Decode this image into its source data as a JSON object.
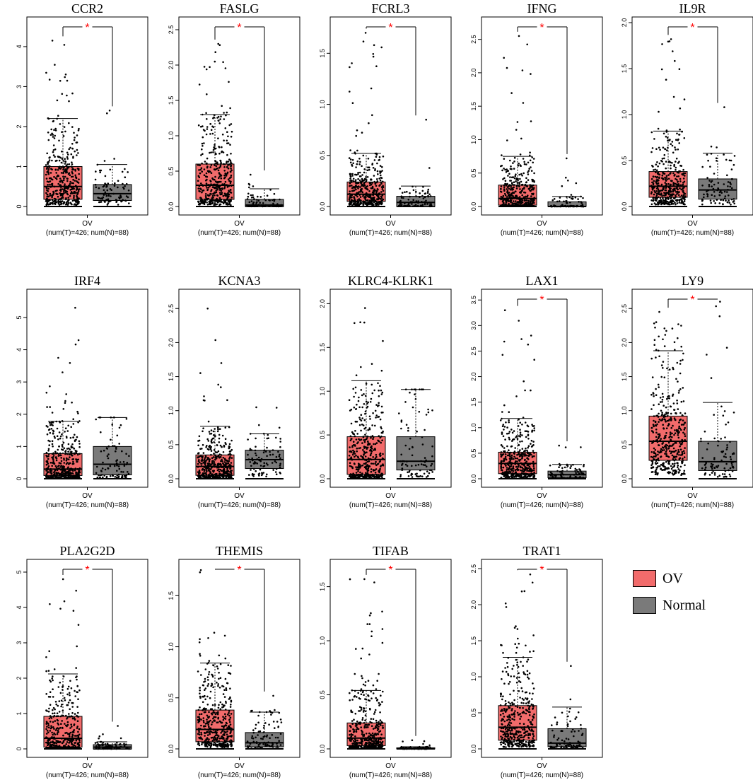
{
  "legend": {
    "items": [
      {
        "label": "OV",
        "color": "#f26b6b"
      },
      {
        "label": "Normal",
        "color": "#7a7a7a"
      }
    ]
  },
  "colors": {
    "tumor": "#f26b6b",
    "normal": "#7a7a7a",
    "significance": "#ff0000",
    "points": "#000000"
  },
  "chart_data": [
    {
      "type": "box",
      "title": "CCR2",
      "category": "OV",
      "caption": "(num(T)=426; num(N)=88)",
      "significant": true,
      "sig_label": "*",
      "ylim": [
        0,
        4.6
      ],
      "yticks": [
        0,
        1,
        2,
        3,
        4
      ],
      "ytick_labels": [
        "0",
        "1",
        "2",
        "3",
        "4"
      ],
      "series": [
        {
          "name": "OV",
          "n": 426,
          "q1": 0.18,
          "median": 0.5,
          "q3": 1.0,
          "whisker_high": 2.2,
          "max": 4.15
        },
        {
          "name": "Normal",
          "n": 88,
          "q1": 0.15,
          "median": 0.32,
          "q3": 0.55,
          "whisker_high": 1.05,
          "max": 2.4
        }
      ]
    },
    {
      "type": "box",
      "title": "FASLG",
      "category": "OV",
      "caption": "(num(T)=426; num(N)=88)",
      "significant": true,
      "sig_label": "*",
      "ylim": [
        0,
        2.6
      ],
      "yticks": [
        0,
        0.5,
        1,
        1.5,
        2,
        2.5
      ],
      "ytick_labels": [
        "0.0",
        "0.5",
        "1.0",
        "1.5",
        "2.0",
        "2.5"
      ],
      "series": [
        {
          "name": "OV",
          "n": 426,
          "q1": 0.1,
          "median": 0.3,
          "q3": 0.6,
          "whisker_high": 1.3,
          "max": 2.3
        },
        {
          "name": "Normal",
          "n": 88,
          "q1": 0.0,
          "median": 0.02,
          "q3": 0.1,
          "whisker_high": 0.25,
          "max": 0.45
        }
      ]
    },
    {
      "type": "box",
      "title": "FCRL3",
      "category": "OV",
      "caption": "(num(T)=426; num(N)=88)",
      "significant": true,
      "sig_label": "*",
      "ylim": [
        0,
        1.8
      ],
      "yticks": [
        0,
        0.5,
        1,
        1.5
      ],
      "ytick_labels": [
        "0.0",
        "0.5",
        "1.0",
        "1.5"
      ],
      "series": [
        {
          "name": "OV",
          "n": 426,
          "q1": 0.05,
          "median": 0.12,
          "q3": 0.24,
          "whisker_high": 0.52,
          "max": 1.7
        },
        {
          "name": "Normal",
          "n": 88,
          "q1": 0.0,
          "median": 0.04,
          "q3": 0.1,
          "whisker_high": 0.2,
          "max": 0.85
        }
      ]
    },
    {
      "type": "box",
      "title": "IFNG",
      "category": "OV",
      "caption": "(num(T)=426; num(N)=88)",
      "significant": true,
      "sig_label": "*",
      "ylim": [
        0,
        2.75
      ],
      "yticks": [
        0,
        0.5,
        1,
        1.5,
        2,
        2.5
      ],
      "ytick_labels": [
        "0.0",
        "0.5",
        "1.0",
        "1.5",
        "2.0",
        "2.5"
      ],
      "series": [
        {
          "name": "OV",
          "n": 426,
          "q1": 0.02,
          "median": 0.12,
          "q3": 0.32,
          "whisker_high": 0.75,
          "max": 2.55
        },
        {
          "name": "Normal",
          "n": 88,
          "q1": 0.0,
          "median": 0.0,
          "q3": 0.07,
          "whisker_high": 0.15,
          "max": 0.72
        }
      ]
    },
    {
      "type": "box",
      "title": "IL9R",
      "category": "OV",
      "caption": "(num(T)=426; num(N)=88)",
      "significant": true,
      "sig_label": "*",
      "ylim": [
        0,
        2.0
      ],
      "yticks": [
        0,
        0.5,
        1,
        1.5,
        2
      ],
      "ytick_labels": [
        "0.0",
        "0.5",
        "1.0",
        "1.5",
        "2.0"
      ],
      "series": [
        {
          "name": "OV",
          "n": 426,
          "q1": 0.1,
          "median": 0.22,
          "q3": 0.38,
          "whisker_high": 0.82,
          "max": 1.82
        },
        {
          "name": "Normal",
          "n": 88,
          "q1": 0.08,
          "median": 0.18,
          "q3": 0.3,
          "whisker_high": 0.58,
          "max": 1.08
        }
      ]
    },
    {
      "type": "box",
      "title": "IRF4",
      "category": "OV",
      "caption": "(num(T)=426; num(N)=88)",
      "significant": false,
      "sig_label": "",
      "ylim": [
        0,
        5.7
      ],
      "yticks": [
        0,
        1,
        2,
        3,
        4,
        5
      ],
      "ytick_labels": [
        "0",
        "1",
        "2",
        "3",
        "4",
        "5"
      ],
      "series": [
        {
          "name": "OV",
          "n": 426,
          "q1": 0.1,
          "median": 0.3,
          "q3": 0.78,
          "whisker_high": 1.78,
          "max": 5.3
        },
        {
          "name": "Normal",
          "n": 88,
          "q1": 0.12,
          "median": 0.45,
          "q3": 1.0,
          "whisker_high": 1.9,
          "max": 1.9
        }
      ]
    },
    {
      "type": "box",
      "title": "KCNA3",
      "category": "OV",
      "caption": "(num(T)=426; num(N)=88)",
      "significant": false,
      "sig_label": "",
      "ylim": [
        0,
        2.7
      ],
      "yticks": [
        0,
        0.5,
        1,
        1.5,
        2,
        2.5
      ],
      "ytick_labels": [
        "0.0",
        "0.5",
        "1.0",
        "1.5",
        "2.0",
        "2.5"
      ],
      "series": [
        {
          "name": "OV",
          "n": 426,
          "q1": 0.05,
          "median": 0.18,
          "q3": 0.35,
          "whisker_high": 0.77,
          "max": 2.5
        },
        {
          "name": "Normal",
          "n": 88,
          "q1": 0.15,
          "median": 0.28,
          "q3": 0.42,
          "whisker_high": 0.66,
          "max": 1.05
        }
      ]
    },
    {
      "type": "box",
      "title": "KLRC4-KLRK1",
      "category": "OV",
      "caption": "(num(T)=426; num(N)=88)",
      "significant": false,
      "sig_label": "",
      "ylim": [
        0,
        2.1
      ],
      "yticks": [
        0,
        0.5,
        1,
        1.5,
        2
      ],
      "ytick_labels": [
        "0.0",
        "0.5",
        "1.0",
        "1.5",
        "2.0"
      ],
      "series": [
        {
          "name": "OV",
          "n": 426,
          "q1": 0.05,
          "median": 0.22,
          "q3": 0.48,
          "whisker_high": 1.12,
          "max": 1.95
        },
        {
          "name": "Normal",
          "n": 88,
          "q1": 0.1,
          "median": 0.2,
          "q3": 0.48,
          "whisker_high": 1.02,
          "max": 1.02
        }
      ]
    },
    {
      "type": "box",
      "title": "LAX1",
      "category": "OV",
      "caption": "(num(T)=426; num(N)=88)",
      "significant": true,
      "sig_label": "*",
      "ylim": [
        0,
        3.6
      ],
      "yticks": [
        0,
        0.5,
        1,
        1.5,
        2,
        2.5,
        3,
        3.5
      ],
      "ytick_labels": [
        "0.0",
        "0.5",
        "1.0",
        "1.5",
        "2.0",
        "2.5",
        "3.0",
        "3.5"
      ],
      "series": [
        {
          "name": "OV",
          "n": 426,
          "q1": 0.1,
          "median": 0.3,
          "q3": 0.52,
          "whisker_high": 1.18,
          "max": 3.3
        },
        {
          "name": "Normal",
          "n": 88,
          "q1": 0.02,
          "median": 0.08,
          "q3": 0.15,
          "whisker_high": 0.28,
          "max": 0.65
        }
      ]
    },
    {
      "type": "box",
      "title": "LY9",
      "category": "OV",
      "caption": "(num(T)=426; num(N)=88)",
      "significant": true,
      "sig_label": "*",
      "ylim": [
        0,
        2.7
      ],
      "yticks": [
        0,
        0.5,
        1,
        1.5,
        2,
        2.5
      ],
      "ytick_labels": [
        "0.0",
        "0.5",
        "1.0",
        "1.5",
        "2.0",
        "2.5"
      ],
      "series": [
        {
          "name": "OV",
          "n": 426,
          "q1": 0.27,
          "median": 0.55,
          "q3": 0.92,
          "whisker_high": 1.88,
          "max": 2.45
        },
        {
          "name": "Normal",
          "n": 88,
          "q1": 0.12,
          "median": 0.25,
          "q3": 0.55,
          "whisker_high": 1.12,
          "max": 2.6
        }
      ]
    },
    {
      "type": "box",
      "title": "PLA2G2D",
      "category": "OV",
      "caption": "(num(T)=426; num(N)=88)",
      "significant": true,
      "sig_label": "*",
      "ylim": [
        0,
        5.2
      ],
      "yticks": [
        0,
        1,
        2,
        3,
        4,
        5
      ],
      "ytick_labels": [
        "0",
        "1",
        "2",
        "3",
        "4",
        "5"
      ],
      "series": [
        {
          "name": "OV",
          "n": 426,
          "q1": 0.05,
          "median": 0.3,
          "q3": 0.92,
          "whisker_high": 2.12,
          "max": 4.8
        },
        {
          "name": "Normal",
          "n": 88,
          "q1": 0.0,
          "median": 0.05,
          "q3": 0.12,
          "whisker_high": 0.2,
          "max": 0.65
        }
      ]
    },
    {
      "type": "box",
      "title": "THEMIS",
      "category": "OV",
      "caption": "(num(T)=426; num(N)=88)",
      "significant": true,
      "sig_label": "*",
      "ylim": [
        0,
        1.8
      ],
      "yticks": [
        0,
        0.5,
        1,
        1.5
      ],
      "ytick_labels": [
        "0.0",
        "0.5",
        "1.0",
        "1.5"
      ],
      "series": [
        {
          "name": "OV",
          "n": 426,
          "q1": 0.07,
          "median": 0.19,
          "q3": 0.38,
          "whisker_high": 0.84,
          "max": 1.75
        },
        {
          "name": "Normal",
          "n": 88,
          "q1": 0.02,
          "median": 0.06,
          "q3": 0.16,
          "whisker_high": 0.36,
          "max": 0.52
        }
      ]
    },
    {
      "type": "box",
      "title": "TIFAB",
      "category": "OV",
      "caption": "(num(T)=426; num(N)=88)",
      "significant": true,
      "sig_label": "*",
      "ylim": [
        0,
        1.7
      ],
      "yticks": [
        0,
        0.5,
        1,
        1.5
      ],
      "ytick_labels": [
        "0.0",
        "0.5",
        "1.0",
        "1.5"
      ],
      "series": [
        {
          "name": "OV",
          "n": 426,
          "q1": 0.03,
          "median": 0.1,
          "q3": 0.24,
          "whisker_high": 0.54,
          "max": 1.57
        },
        {
          "name": "Normal",
          "n": 88,
          "q1": 0.0,
          "median": 0.0,
          "q3": 0.01,
          "whisker_high": 0.02,
          "max": 0.08
        }
      ]
    },
    {
      "type": "box",
      "title": "TRAT1",
      "category": "OV",
      "caption": "(num(T)=426; num(N)=88)",
      "significant": true,
      "sig_label": "*",
      "ylim": [
        0,
        2.55
      ],
      "yticks": [
        0,
        0.5,
        1,
        1.5,
        2,
        2.5
      ],
      "ytick_labels": [
        "0.0",
        "0.5",
        "1.0",
        "1.5",
        "2.0",
        "2.5"
      ],
      "series": [
        {
          "name": "OV",
          "n": 426,
          "q1": 0.12,
          "median": 0.3,
          "q3": 0.6,
          "whisker_high": 1.27,
          "max": 2.42
        },
        {
          "name": "Normal",
          "n": 88,
          "q1": 0.03,
          "median": 0.08,
          "q3": 0.28,
          "whisker_high": 0.58,
          "max": 1.15
        }
      ]
    }
  ]
}
